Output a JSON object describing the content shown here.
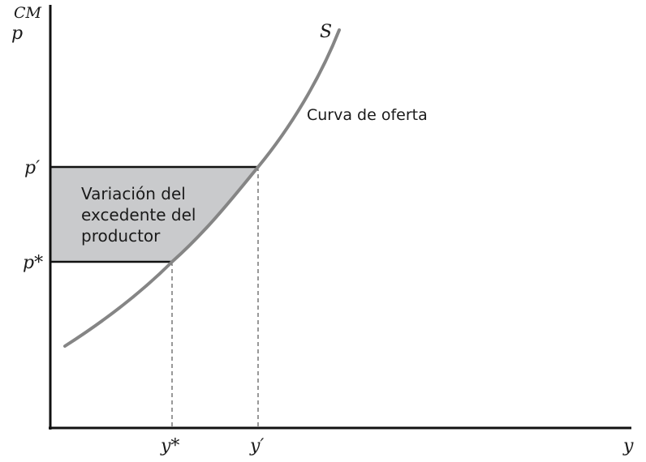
{
  "labels": {
    "y_axis_top": "CM",
    "y_axis": "p",
    "x_axis": "y",
    "curve_name": "S",
    "curve_label": "Curva de oferta",
    "p_prime": "p′",
    "p_star": "p*",
    "y_star": "y*",
    "y_prime": "y′",
    "area_line1": "Variación del",
    "area_line2": "excedente del",
    "area_line3": "productor"
  },
  "colors": {
    "axis": "#111111",
    "curve": "#858585",
    "area_fill": "#c9cacc",
    "guide": "#333333"
  }
}
